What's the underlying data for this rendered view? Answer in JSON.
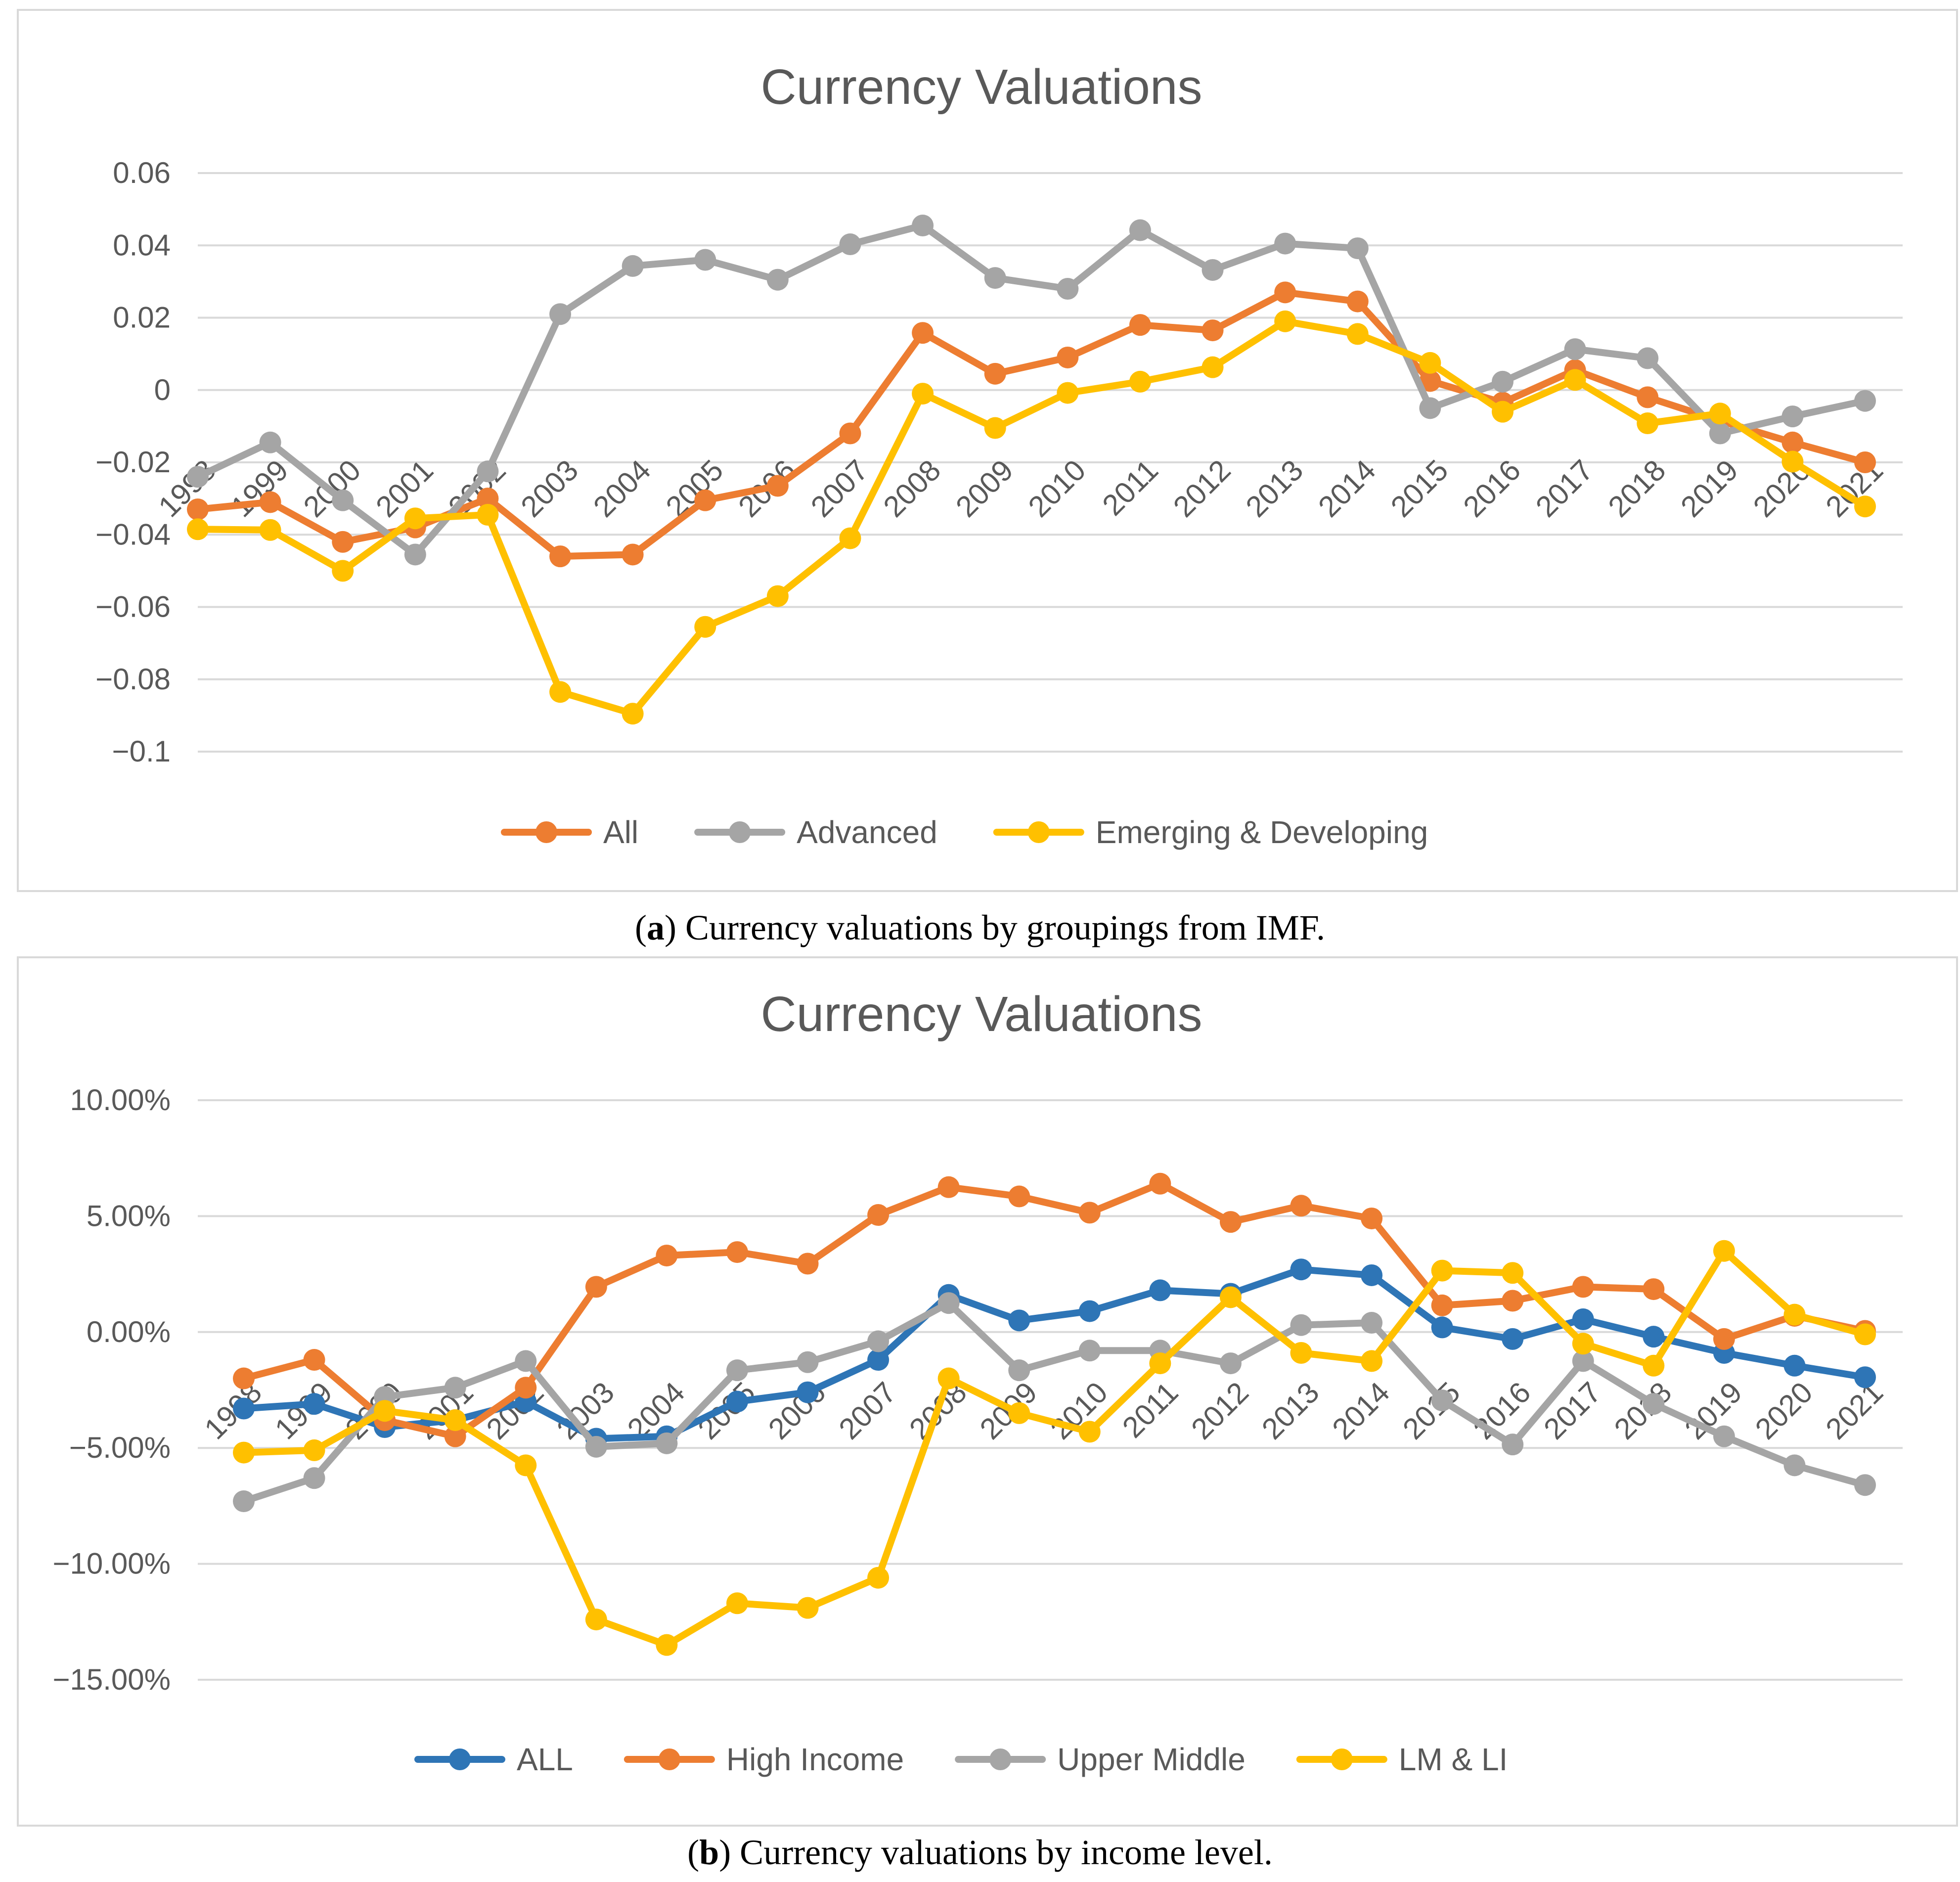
{
  "chart_data": [
    {
      "type": "line",
      "title": "Currency Valuations",
      "categories": [
        "1998",
        "1999",
        "2000",
        "2001",
        "2002",
        "2003",
        "2004",
        "2005",
        "2006",
        "2007",
        "2008",
        "2009",
        "2010",
        "2011",
        "2012",
        "2013",
        "2014",
        "2015",
        "2016",
        "2017",
        "2018",
        "2019",
        "2020",
        "2021"
      ],
      "yticks": [
        "0.06",
        "0.04",
        "0.02",
        "0",
        "−0.02",
        "−0.04",
        "−0.06",
        "−0.08",
        "−0.1"
      ],
      "ylim": [
        -0.1,
        0.06
      ],
      "series": [
        {
          "name": "All",
          "color": "#ED7D31",
          "values": [
            -0.033,
            -0.031,
            -0.042,
            -0.038,
            -0.03,
            -0.046,
            -0.0455,
            -0.0305,
            -0.0265,
            -0.012,
            0.0158,
            0.0045,
            0.009,
            0.018,
            0.0165,
            0.027,
            0.0245,
            0.0025,
            -0.0035,
            0.0055,
            -0.002,
            -0.0085,
            -0.0145,
            -0.02
          ]
        },
        {
          "name": "Advanced",
          "color": "#A5A5A5",
          "values": [
            -0.024,
            -0.0145,
            -0.0305,
            -0.0455,
            -0.0225,
            0.021,
            0.0343,
            0.036,
            0.0305,
            0.0403,
            0.0455,
            0.031,
            0.028,
            0.0442,
            0.0332,
            0.0405,
            0.0392,
            -0.005,
            0.0023,
            0.0113,
            0.0088,
            -0.012,
            -0.0073,
            -0.003
          ]
        },
        {
          "name": "Emerging & Developing",
          "color": "#FFC000",
          "values": [
            -0.0385,
            -0.0387,
            -0.05,
            -0.0355,
            -0.0345,
            -0.0835,
            -0.0895,
            -0.0655,
            -0.057,
            -0.041,
            -0.001,
            -0.0105,
            -0.0008,
            0.0023,
            0.0063,
            0.019,
            0.0155,
            0.0075,
            -0.006,
            0.0028,
            -0.0092,
            -0.0065,
            -0.0198,
            -0.0322
          ]
        }
      ],
      "legend": "bottom",
      "grid": true
    },
    {
      "type": "line",
      "title": "Currency Valuations",
      "categories": [
        "1998",
        "1999",
        "2000",
        "2001",
        "2002",
        "2003",
        "2004",
        "2005",
        "2006",
        "2007",
        "2008",
        "2009",
        "2010",
        "2011",
        "2012",
        "2013",
        "2014",
        "2015",
        "2016",
        "2017",
        "2018",
        "2019",
        "2020",
        "2021"
      ],
      "yticks": [
        "10.00%",
        "5.00%",
        "0.00%",
        "−5.00%",
        "−10.00%",
        "−15.00%"
      ],
      "ylim": [
        -15,
        10
      ],
      "series": [
        {
          "name": "ALL",
          "color": "#2E75B6",
          "values": [
            -3.3,
            -3.1,
            -4.1,
            -3.8,
            -3.0,
            -4.6,
            -4.5,
            -3.0,
            -2.6,
            -1.2,
            1.6,
            0.5,
            0.9,
            1.8,
            1.65,
            2.7,
            2.45,
            0.2,
            -0.3,
            0.55,
            -0.2,
            -0.9,
            -1.45,
            -1.95
          ]
        },
        {
          "name": "High Income",
          "color": "#ED7D31",
          "values": [
            -2.0,
            -1.2,
            -3.8,
            -4.5,
            -2.4,
            1.95,
            3.3,
            3.45,
            2.95,
            5.05,
            6.25,
            5.85,
            5.15,
            6.4,
            4.75,
            5.45,
            4.9,
            1.15,
            1.35,
            1.95,
            1.85,
            -0.3,
            0.7,
            0.05
          ]
        },
        {
          "name": "Upper Middle",
          "color": "#A5A5A5",
          "values": [
            -7.3,
            -6.3,
            -2.8,
            -2.4,
            -1.25,
            -4.95,
            -4.8,
            -1.65,
            -1.3,
            -0.4,
            1.25,
            -1.65,
            -0.8,
            -0.8,
            -1.35,
            0.3,
            0.4,
            -2.95,
            -4.85,
            -1.25,
            -3.1,
            -4.5,
            -5.75,
            -6.6
          ]
        },
        {
          "name": "LM & LI",
          "color": "#FFC000",
          "values": [
            -5.2,
            -5.1,
            -3.4,
            -3.8,
            -5.75,
            -12.4,
            -13.5,
            -11.7,
            -11.9,
            -10.6,
            -2.0,
            -3.5,
            -4.3,
            -1.35,
            1.5,
            -0.9,
            -1.25,
            2.65,
            2.55,
            -0.5,
            -1.45,
            3.5,
            0.75,
            -0.1
          ]
        }
      ],
      "legend": "bottom",
      "grid": true
    }
  ],
  "captions": {
    "a_label": "a",
    "a_text": ") Currency valuations by groupings from IMF.",
    "b_label": "b",
    "b_text": ") Currency valuations by income level."
  }
}
